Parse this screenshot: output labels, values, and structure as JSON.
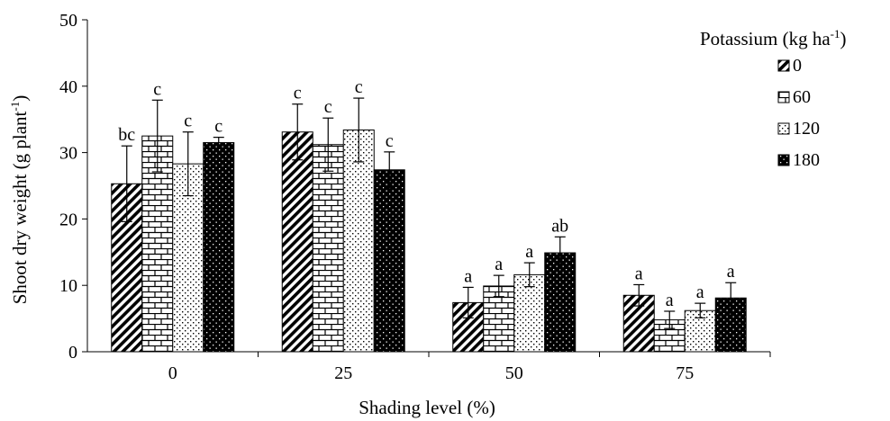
{
  "chart_data": {
    "type": "bar",
    "categories": [
      "0",
      "25",
      "50",
      "75"
    ],
    "xlabel": "Shading level (%)",
    "ylabel": {
      "main": "Shoot dry weight (g plant",
      "sup": "-1",
      "close": ")"
    },
    "ylim": [
      0,
      50
    ],
    "yticks": [
      "0",
      "10",
      "20",
      "30",
      "40",
      "50"
    ],
    "grid": false,
    "legend": {
      "title": {
        "main": "Potassium (kg ha",
        "sup": "-1",
        "close": ")"
      },
      "placement": "right"
    },
    "series": [
      {
        "name": "0",
        "pattern": "diagonal",
        "values": [
          25.3,
          33.1,
          7.4,
          8.5
        ],
        "errors": [
          5.7,
          4.2,
          2.3,
          1.6
        ],
        "labels": [
          "bc",
          "c",
          "a",
          "a"
        ]
      },
      {
        "name": "60",
        "pattern": "brick",
        "values": [
          32.5,
          31.2,
          9.9,
          4.8
        ],
        "errors": [
          5.4,
          4.0,
          1.6,
          1.3
        ],
        "labels": [
          "c",
          "c",
          "a",
          "a"
        ]
      },
      {
        "name": "120",
        "pattern": "dots",
        "values": [
          28.3,
          33.4,
          11.6,
          6.2
        ],
        "errors": [
          4.8,
          4.8,
          1.8,
          1.1
        ],
        "labels": [
          "c",
          "c",
          "a",
          "a"
        ]
      },
      {
        "name": "180",
        "pattern": "dark-dots",
        "values": [
          31.5,
          27.4,
          14.9,
          8.1
        ],
        "errors": [
          0.8,
          2.7,
          2.4,
          2.3
        ],
        "labels": [
          "c",
          "c",
          "ab",
          "a"
        ]
      }
    ]
  }
}
